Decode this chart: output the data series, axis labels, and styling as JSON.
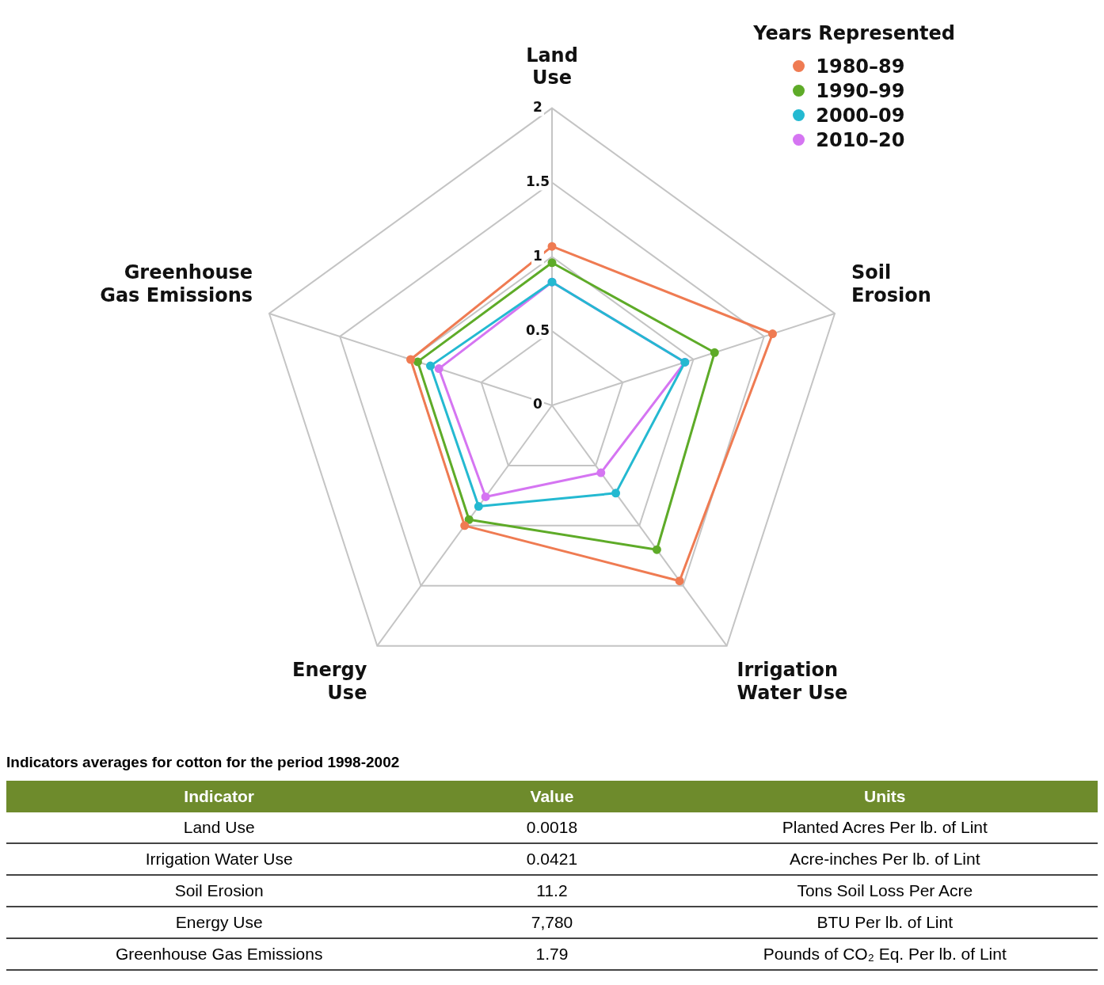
{
  "chart_data": [
    {
      "type": "radar",
      "categories": [
        "Land Use",
        "Soil Erosion",
        "Irrigation Water Use",
        "Energy Use",
        "Greenhouse Gas Emissions"
      ],
      "legend_title": "Years Represented",
      "legend": "top right",
      "marker": "circle",
      "grid": true,
      "ylim": [
        0,
        2
      ],
      "yticks": [
        0,
        0.5,
        1,
        1.5,
        2
      ],
      "series": [
        {
          "name": "1980–89",
          "color": "#ef7b52",
          "values": [
            1.07,
            1.56,
            1.46,
            1.0,
            1.0
          ]
        },
        {
          "name": "1990–99",
          "color": "#5eab28",
          "values": [
            0.96,
            1.15,
            1.2,
            0.95,
            0.95
          ]
        },
        {
          "name": "2000–09",
          "color": "#24b9d1",
          "values": [
            0.83,
            0.94,
            0.73,
            0.84,
            0.86
          ]
        },
        {
          "name": "2010–20",
          "color": "#d575f2",
          "values": [
            0.83,
            0.94,
            0.56,
            0.76,
            0.8
          ]
        }
      ]
    },
    {
      "type": "other",
      "title": "Indicators averages for cotton for the period 1998-2002",
      "categories": [
        "Indicator",
        "Value",
        "Units"
      ],
      "cell_labels": [
        [
          "Land Use",
          "0.0018",
          "Planted Acres Per lb. of Lint"
        ],
        [
          "Irrigation Water Use",
          "0.0421",
          "Acre-inches Per lb. of Lint"
        ],
        [
          "Soil Erosion",
          "11.2",
          "Tons Soil Loss Per Acre"
        ],
        [
          "Energy Use",
          "7,780",
          "BTU Per lb. of Lint"
        ],
        [
          "Greenhouse Gas Emissions",
          "1.79",
          "Pounds of CO₂ Eq. Per lb. of Lint"
        ]
      ]
    }
  ]
}
